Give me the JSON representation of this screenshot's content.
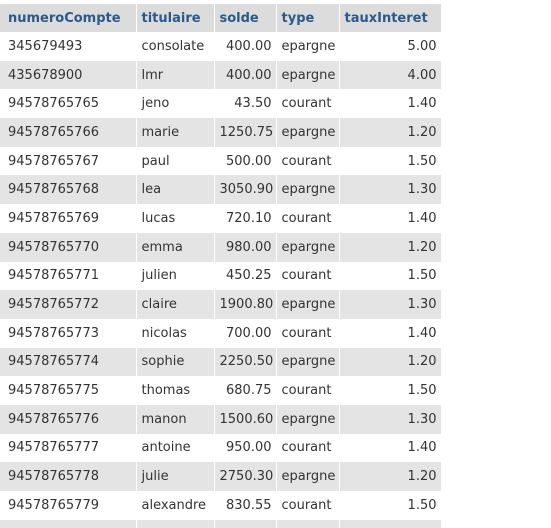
{
  "columns": [
    "numeroCompte",
    "titulaire",
    "solde",
    "type",
    "tauxInteret"
  ],
  "rows": [
    [
      "345679493",
      "consolate",
      "400.00",
      "epargne",
      "5.00"
    ],
    [
      "435678900",
      "lmr",
      "400.00",
      "epargne",
      "4.00"
    ],
    [
      "94578765765",
      "jeno",
      "43.50",
      "courant",
      "1.40"
    ],
    [
      "94578765766",
      "marie",
      "1250.75",
      "epargne",
      "1.20"
    ],
    [
      "94578765767",
      "paul",
      "500.00",
      "courant",
      "1.50"
    ],
    [
      "94578765768",
      "lea",
      "3050.90",
      "epargne",
      "1.30"
    ],
    [
      "94578765769",
      "lucas",
      "720.10",
      "courant",
      "1.40"
    ],
    [
      "94578765770",
      "emma",
      "980.00",
      "epargne",
      "1.20"
    ],
    [
      "94578765771",
      "julien",
      "450.25",
      "courant",
      "1.50"
    ],
    [
      "94578765772",
      "claire",
      "1900.80",
      "epargne",
      "1.30"
    ],
    [
      "94578765773",
      "nicolas",
      "700.00",
      "courant",
      "1.40"
    ],
    [
      "94578765774",
      "sophie",
      "2250.50",
      "epargne",
      "1.20"
    ],
    [
      "94578765775",
      "thomas",
      "680.75",
      "courant",
      "1.50"
    ],
    [
      "94578765776",
      "manon",
      "1500.60",
      "epargne",
      "1.30"
    ],
    [
      "94578765777",
      "antoine",
      "950.00",
      "courant",
      "1.40"
    ],
    [
      "94578765778",
      "julie",
      "2750.30",
      "epargne",
      "1.20"
    ],
    [
      "94578765779",
      "alexandre",
      "830.55",
      "courant",
      "1.50"
    ]
  ],
  "colors": {
    "header_bg": "#dcdcdc",
    "header_text": "#2a5a8a",
    "row_alt_bg": "#e4e4e4"
  }
}
